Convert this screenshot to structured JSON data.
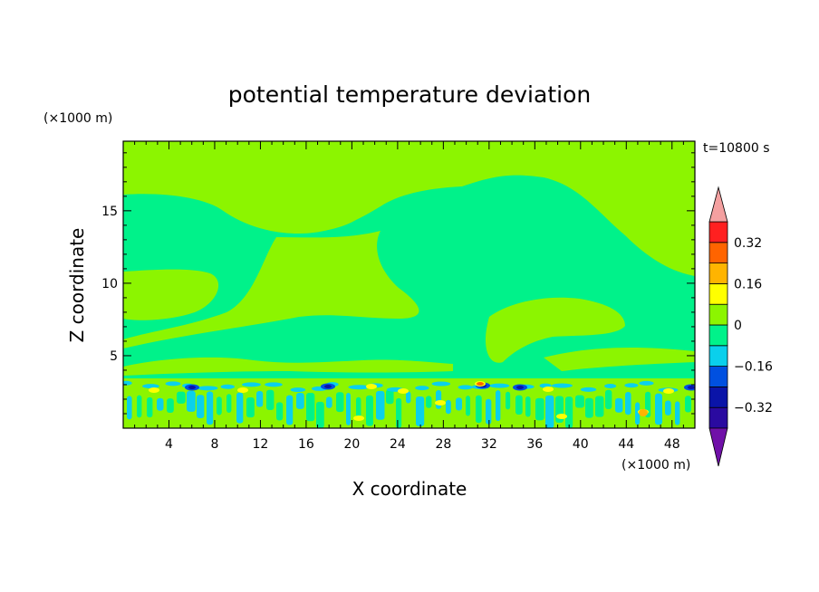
{
  "chart_data": {
    "type": "heatmap",
    "title": "potential temperature deviation",
    "time_label": "t=10800 s",
    "xlabel": "X coordinate",
    "ylabel": "Z coordinate",
    "x_unit": "(×1000 m)",
    "y_unit": "(×1000 m)",
    "xlim": [
      0,
      50
    ],
    "ylim": [
      0,
      19.8
    ],
    "x_ticks": [
      4,
      8,
      12,
      16,
      20,
      24,
      28,
      32,
      36,
      40,
      44,
      48
    ],
    "y_ticks": [
      5,
      10,
      15
    ],
    "colorbar": {
      "labels": [
        {
          "value": 0.32,
          "text": "0.32"
        },
        {
          "value": 0.16,
          "text": "0.16"
        },
        {
          "value": 0,
          "text": "0"
        },
        {
          "value": -0.16,
          "text": "−0.16"
        },
        {
          "value": -0.32,
          "text": "−0.32"
        }
      ],
      "bands": [
        {
          "lo": -0.4,
          "hi": -0.32,
          "color": "#2a0aa0"
        },
        {
          "lo": -0.32,
          "hi": -0.24,
          "color": "#0a14a8"
        },
        {
          "lo": -0.24,
          "hi": -0.16,
          "color": "#0050e0"
        },
        {
          "lo": -0.16,
          "hi": -0.08,
          "color": "#0ad0ec"
        },
        {
          "lo": -0.08,
          "hi": 0,
          "color": "#00f28a"
        },
        {
          "lo": 0,
          "hi": 0.08,
          "color": "#8cf500"
        },
        {
          "lo": 0.08,
          "hi": 0.16,
          "color": "#ffff00"
        },
        {
          "lo": 0.16,
          "hi": 0.24,
          "color": "#ffb400"
        },
        {
          "lo": 0.24,
          "hi": 0.32,
          "color": "#ff6400"
        },
        {
          "lo": 0.32,
          "hi": 0.4,
          "color": "#ff2020"
        }
      ],
      "over_color": "#f4a0a0",
      "under_color": "#7010a8"
    },
    "colors": {
      "positive_small": "#8cf500",
      "negative_small": "#00f28a",
      "cyan": "#0ad0ec",
      "blue": "#0050e0",
      "dark_blue": "#0a14a8",
      "yellow": "#ffff00",
      "orange": "#ffb400",
      "red": "#ff6400"
    }
  }
}
